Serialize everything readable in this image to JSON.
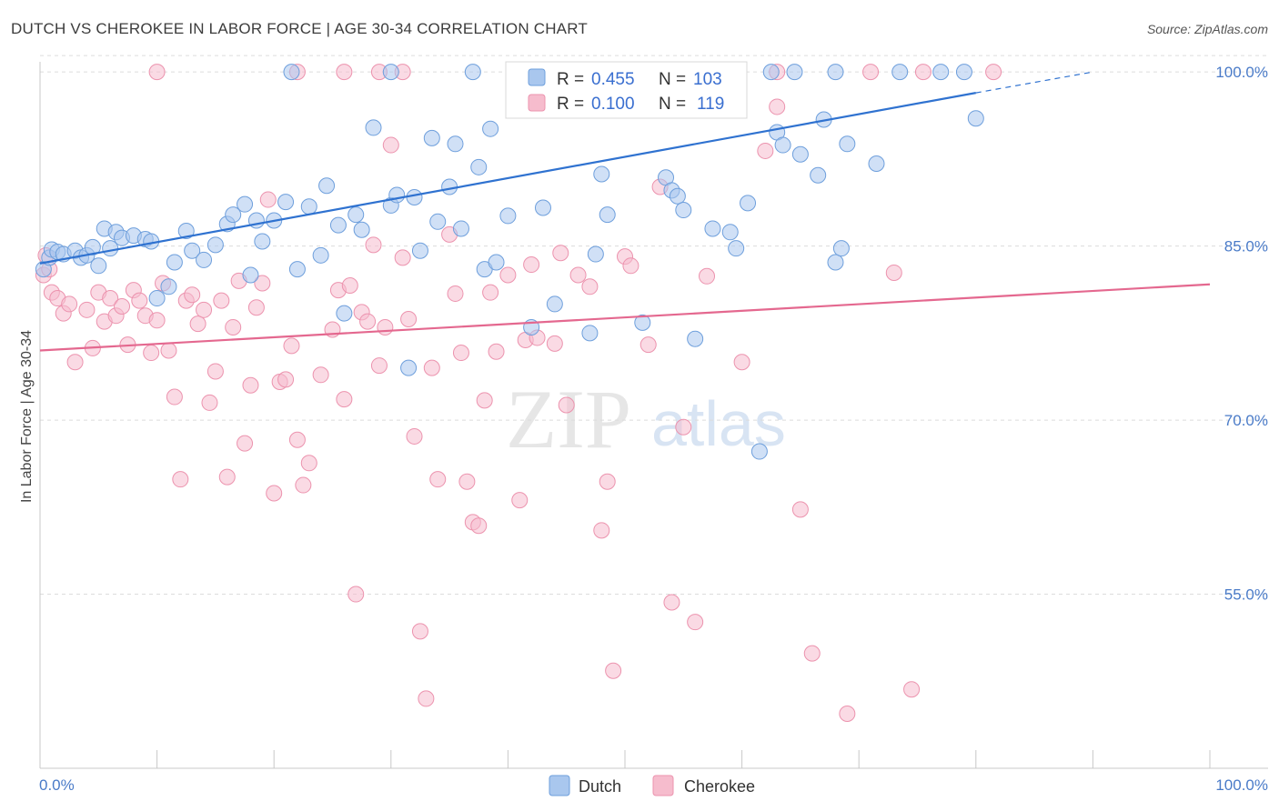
{
  "title": "DUTCH VS CHEROKEE IN LABOR FORCE | AGE 30-34 CORRELATION CHART",
  "source": "Source: ZipAtlas.com",
  "watermark": {
    "zip": "ZIP",
    "atlas": "atlas"
  },
  "colors": {
    "dutch_fill": "#a9c7ee",
    "dutch_stroke": "#6e9fdc",
    "dutch_line": "#2f72d0",
    "cherokee_fill": "#f6bccd",
    "cherokee_stroke": "#ec93ae",
    "cherokee_line": "#e4688f",
    "axis_text": "#4a7bc8",
    "grid": "#dcdcdc"
  },
  "legend": {
    "r_label": "R =",
    "n_label": "N =",
    "dutch": {
      "r": "0.455",
      "n": "103"
    },
    "cherokee": {
      "r": "0.100",
      "n": "119"
    }
  },
  "bottom_legend": {
    "dutch": "Dutch",
    "cherokee": "Cherokee"
  },
  "chart_data": {
    "type": "scatter",
    "title": "DUTCH VS CHEROKEE IN LABOR FORCE | AGE 30-34 CORRELATION CHART",
    "xlabel": "",
    "ylabel": "In Labor Force | Age 30-34",
    "xlim": [
      0,
      100
    ],
    "ylim": [
      40,
      101.5
    ],
    "x_tick_labels": [
      "0.0%",
      "100.0%"
    ],
    "y_ticks": [
      55,
      70,
      85,
      100
    ],
    "y_tick_labels": [
      "55.0%",
      "70.0%",
      "85.0%",
      "100.0%"
    ],
    "grid": true,
    "legend_position": "top-center",
    "series": [
      {
        "name": "Dutch",
        "r": 0.455,
        "n": 103,
        "trend": {
          "x0": 0,
          "y0": 83.5,
          "x1": 80,
          "y1": 98.2,
          "dashed_to_x": 90,
          "dashed_to_y": 100.0
        },
        "points": [
          [
            0.3,
            83.0
          ],
          [
            0.8,
            84.0
          ],
          [
            1.0,
            84.7
          ],
          [
            1.5,
            84.5
          ],
          [
            2.0,
            84.3
          ],
          [
            3.0,
            84.6
          ],
          [
            3.5,
            84.0
          ],
          [
            4.0,
            84.2
          ],
          [
            4.5,
            84.9
          ],
          [
            5.0,
            83.3
          ],
          [
            5.5,
            86.5
          ],
          [
            6.0,
            84.8
          ],
          [
            6.5,
            86.2
          ],
          [
            7.0,
            85.7
          ],
          [
            8.0,
            85.9
          ],
          [
            9.0,
            85.6
          ],
          [
            9.5,
            85.4
          ],
          [
            10.0,
            80.5
          ],
          [
            11.0,
            81.5
          ],
          [
            11.5,
            83.6
          ],
          [
            12.5,
            86.3
          ],
          [
            13.0,
            84.6
          ],
          [
            14.0,
            83.8
          ],
          [
            15.0,
            85.1
          ],
          [
            16.0,
            86.9
          ],
          [
            16.5,
            87.7
          ],
          [
            17.5,
            88.6
          ],
          [
            18.0,
            82.5
          ],
          [
            18.5,
            87.2
          ],
          [
            19.0,
            85.4
          ],
          [
            20.0,
            87.2
          ],
          [
            21.0,
            88.8
          ],
          [
            22.0,
            83.0
          ],
          [
            23.0,
            88.4
          ],
          [
            24.0,
            84.2
          ],
          [
            24.5,
            90.2
          ],
          [
            25.5,
            86.8
          ],
          [
            26.0,
            79.2
          ],
          [
            27.0,
            87.7
          ],
          [
            27.5,
            86.4
          ],
          [
            28.5,
            95.2
          ],
          [
            30.0,
            88.5
          ],
          [
            30.5,
            89.4
          ],
          [
            31.5,
            74.5
          ],
          [
            32.0,
            89.2
          ],
          [
            32.5,
            84.6
          ],
          [
            33.5,
            94.3
          ],
          [
            34.0,
            87.1
          ],
          [
            35.0,
            90.1
          ],
          [
            35.5,
            93.8
          ],
          [
            36.0,
            86.5
          ],
          [
            37.5,
            91.8
          ],
          [
            38.0,
            83.0
          ],
          [
            38.5,
            95.1
          ],
          [
            39.0,
            83.6
          ],
          [
            40.0,
            87.6
          ],
          [
            41.0,
            100.0
          ],
          [
            42.0,
            78.0
          ],
          [
            43.0,
            88.3
          ],
          [
            44.0,
            80.0
          ],
          [
            44.5,
            100.0
          ],
          [
            45.5,
            100.0
          ],
          [
            47.0,
            77.5
          ],
          [
            47.5,
            84.3
          ],
          [
            48.0,
            91.2
          ],
          [
            48.5,
            87.7
          ],
          [
            50.0,
            100.0
          ],
          [
            51.5,
            78.4
          ],
          [
            52.0,
            97.4
          ],
          [
            53.5,
            90.9
          ],
          [
            54.0,
            89.8
          ],
          [
            54.5,
            89.3
          ],
          [
            55.0,
            88.1
          ],
          [
            56.0,
            77.0
          ],
          [
            57.0,
            100.0
          ],
          [
            57.5,
            86.5
          ],
          [
            59.0,
            86.2
          ],
          [
            59.5,
            84.8
          ],
          [
            60.5,
            88.7
          ],
          [
            61.5,
            67.3
          ],
          [
            63.0,
            94.8
          ],
          [
            63.5,
            93.7
          ],
          [
            65.0,
            92.9
          ],
          [
            66.5,
            91.1
          ],
          [
            67.0,
            95.9
          ],
          [
            68.0,
            83.6
          ],
          [
            68.5,
            84.8
          ],
          [
            69.0,
            93.8
          ],
          [
            71.5,
            92.1
          ],
          [
            79.0,
            100.0
          ],
          [
            80.0,
            96.0
          ],
          [
            21.5,
            100.0
          ],
          [
            30.0,
            100.0
          ],
          [
            37.0,
            100.0
          ],
          [
            40.5,
            100.0
          ],
          [
            46.0,
            100.0
          ],
          [
            56.5,
            100.0
          ],
          [
            64.5,
            100.0
          ],
          [
            68.0,
            100.0
          ],
          [
            73.5,
            100.0
          ],
          [
            77.0,
            100.0
          ],
          [
            62.5,
            100.0
          ],
          [
            52.5,
            100.0
          ]
        ]
      },
      {
        "name": "Cherokee",
        "r": 0.1,
        "n": 119,
        "trend": {
          "x0": 0,
          "y0": 76.0,
          "x1": 100,
          "y1": 81.7
        },
        "points": [
          [
            0.3,
            82.5
          ],
          [
            0.5,
            84.2
          ],
          [
            0.8,
            83.0
          ],
          [
            1.0,
            81.0
          ],
          [
            1.5,
            80.5
          ],
          [
            2.0,
            79.2
          ],
          [
            2.5,
            80.0
          ],
          [
            3.0,
            75.0
          ],
          [
            4.0,
            79.5
          ],
          [
            4.5,
            76.2
          ],
          [
            5.0,
            81.0
          ],
          [
            5.5,
            78.5
          ],
          [
            6.0,
            80.5
          ],
          [
            6.5,
            79.0
          ],
          [
            7.0,
            79.8
          ],
          [
            7.5,
            76.5
          ],
          [
            8.0,
            81.2
          ],
          [
            8.5,
            80.3
          ],
          [
            9.0,
            79.0
          ],
          [
            9.5,
            75.8
          ],
          [
            10.0,
            78.6
          ],
          [
            10.5,
            81.8
          ],
          [
            11.0,
            76.0
          ],
          [
            11.5,
            72.0
          ],
          [
            12.0,
            64.9
          ],
          [
            12.5,
            80.3
          ],
          [
            13.0,
            80.8
          ],
          [
            13.5,
            78.3
          ],
          [
            14.0,
            79.5
          ],
          [
            14.5,
            71.5
          ],
          [
            15.0,
            74.2
          ],
          [
            15.5,
            80.3
          ],
          [
            16.0,
            65.1
          ],
          [
            16.5,
            78.0
          ],
          [
            17.0,
            82.0
          ],
          [
            17.5,
            68.0
          ],
          [
            18.0,
            73.0
          ],
          [
            18.5,
            79.7
          ],
          [
            19.0,
            81.8
          ],
          [
            19.5,
            89.0
          ],
          [
            20.0,
            63.7
          ],
          [
            20.5,
            73.3
          ],
          [
            21.0,
            73.5
          ],
          [
            21.5,
            76.4
          ],
          [
            22.0,
            68.3
          ],
          [
            22.5,
            64.4
          ],
          [
            23.0,
            66.3
          ],
          [
            24.0,
            73.9
          ],
          [
            25.0,
            77.8
          ],
          [
            25.5,
            81.2
          ],
          [
            26.0,
            71.8
          ],
          [
            26.5,
            81.6
          ],
          [
            27.0,
            55.0
          ],
          [
            27.5,
            79.3
          ],
          [
            28.0,
            78.5
          ],
          [
            28.5,
            85.1
          ],
          [
            29.0,
            74.7
          ],
          [
            29.5,
            78.0
          ],
          [
            30.0,
            93.7
          ],
          [
            31.0,
            84.0
          ],
          [
            31.5,
            78.7
          ],
          [
            32.0,
            68.6
          ],
          [
            32.5,
            51.8
          ],
          [
            33.0,
            46.0
          ],
          [
            33.5,
            74.5
          ],
          [
            34.0,
            64.9
          ],
          [
            35.0,
            86.0
          ],
          [
            35.5,
            80.9
          ],
          [
            36.0,
            75.8
          ],
          [
            36.5,
            64.7
          ],
          [
            37.0,
            61.2
          ],
          [
            37.5,
            60.9
          ],
          [
            38.0,
            71.7
          ],
          [
            38.5,
            81.0
          ],
          [
            39.0,
            75.9
          ],
          [
            40.0,
            82.5
          ],
          [
            41.0,
            63.1
          ],
          [
            41.5,
            76.9
          ],
          [
            42.0,
            83.4
          ],
          [
            42.5,
            77.1
          ],
          [
            44.0,
            76.6
          ],
          [
            44.5,
            84.4
          ],
          [
            45.0,
            71.3
          ],
          [
            46.0,
            82.5
          ],
          [
            47.0,
            81.5
          ],
          [
            48.0,
            60.5
          ],
          [
            48.5,
            64.7
          ],
          [
            49.0,
            48.4
          ],
          [
            50.0,
            84.1
          ],
          [
            50.5,
            83.3
          ],
          [
            52.0,
            76.5
          ],
          [
            53.0,
            90.1
          ],
          [
            54.0,
            54.3
          ],
          [
            55.0,
            69.4
          ],
          [
            56.0,
            52.6
          ],
          [
            57.0,
            82.4
          ],
          [
            60.0,
            75.0
          ],
          [
            62.0,
            93.2
          ],
          [
            63.0,
            97.0
          ],
          [
            65.0,
            62.3
          ],
          [
            66.0,
            49.9
          ],
          [
            69.0,
            44.7
          ],
          [
            73.0,
            82.7
          ],
          [
            74.5,
            46.8
          ],
          [
            10.0,
            100.0
          ],
          [
            22.0,
            100.0
          ],
          [
            26.0,
            100.0
          ],
          [
            29.0,
            100.0
          ],
          [
            31.0,
            100.0
          ],
          [
            49.5,
            100.0
          ],
          [
            51.0,
            100.0
          ],
          [
            52.5,
            100.0
          ],
          [
            55.0,
            100.0
          ],
          [
            56.0,
            100.0
          ],
          [
            59.0,
            100.0
          ],
          [
            63.0,
            100.0
          ],
          [
            71.0,
            100.0
          ],
          [
            75.5,
            100.0
          ],
          [
            81.5,
            100.0
          ]
        ]
      }
    ]
  }
}
